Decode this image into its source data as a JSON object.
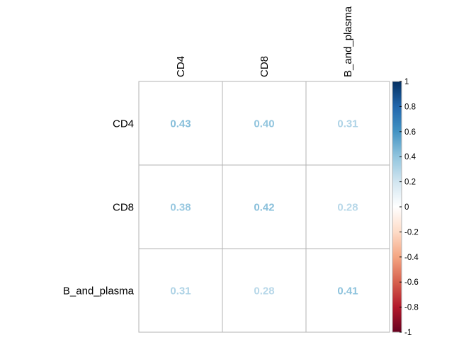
{
  "chart_data": {
    "type": "heatmap",
    "title": "",
    "rows": [
      "CD4",
      "CD8",
      "B_and_plasma"
    ],
    "columns": [
      "CD4",
      "CD8",
      "B_and_plasma"
    ],
    "values": [
      [
        0.43,
        0.4,
        0.31
      ],
      [
        0.38,
        0.42,
        0.28
      ],
      [
        0.31,
        0.28,
        0.41
      ]
    ],
    "value_labels": [
      [
        "0.43",
        "0.40",
        "0.31"
      ],
      [
        "0.38",
        "0.42",
        "0.28"
      ],
      [
        "0.31",
        "0.28",
        "0.41"
      ]
    ],
    "colorbar": {
      "range": [
        -1,
        1
      ],
      "tick_values": [
        1,
        0.8,
        0.6,
        0.4,
        0.2,
        0,
        -0.2,
        -0.4,
        -0.6,
        -0.8,
        -1
      ],
      "tick_labels": [
        "1",
        "0.8",
        "0.6",
        "0.4",
        "0.2",
        "0",
        "-0.2",
        "-0.4",
        "-0.6",
        "-0.8",
        "-1"
      ],
      "colors": [
        "#67001F",
        "#B2182B",
        "#D6604D",
        "#F4A582",
        "#FDDBC7",
        "#FFFFFF",
        "#D1E5F0",
        "#92C5DE",
        "#4393C3",
        "#2166AC",
        "#053061"
      ]
    },
    "grid": true,
    "legend": "right"
  }
}
